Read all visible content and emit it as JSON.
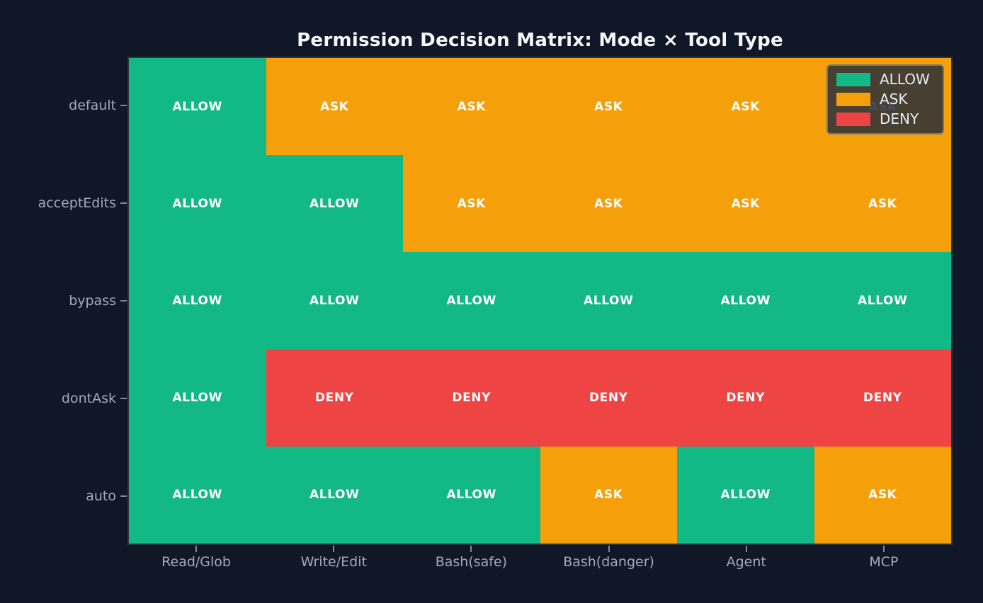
{
  "page": {
    "background_color": "#101828"
  },
  "chart_data": {
    "type": "heatmap",
    "title": "Permission Decision Matrix: Mode × Tool Type",
    "xlabel": "",
    "ylabel": "",
    "rows": [
      "default",
      "acceptEdits",
      "bypass",
      "dontAsk",
      "auto"
    ],
    "columns": [
      "Read/Glob",
      "Write/Edit",
      "Bash(safe)",
      "Bash(danger)",
      "Agent",
      "MCP"
    ],
    "cells": [
      [
        "ALLOW",
        "ASK",
        "ASK",
        "ASK",
        "ASK",
        "ASK"
      ],
      [
        "ALLOW",
        "ALLOW",
        "ASK",
        "ASK",
        "ASK",
        "ASK"
      ],
      [
        "ALLOW",
        "ALLOW",
        "ALLOW",
        "ALLOW",
        "ALLOW",
        "ALLOW"
      ],
      [
        "ALLOW",
        "DENY",
        "DENY",
        "DENY",
        "DENY",
        "DENY"
      ],
      [
        "ALLOW",
        "ALLOW",
        "ALLOW",
        "ASK",
        "ALLOW",
        "ASK"
      ]
    ],
    "colors": {
      "ALLOW": "#12B886",
      "ASK": "#F5A00B",
      "DENY": "#EF4444"
    },
    "cell_text_color": "#ffffff",
    "tick_label_color": "#a0abb9",
    "grid": false,
    "legend": {
      "position": "upper right",
      "entries": [
        {
          "label": "ALLOW",
          "color": "#12B886"
        },
        {
          "label": "ASK",
          "color": "#F5A00B"
        },
        {
          "label": "DENY",
          "color": "#EF4444"
        }
      ]
    }
  }
}
